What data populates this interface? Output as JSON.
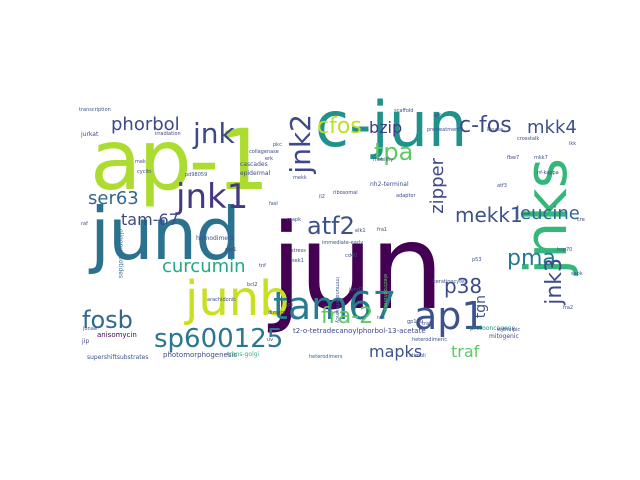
{
  "wordcloud": {
    "words": {
      "jun": "jun",
      "c_jun": "c-jun",
      "ap_1a": "ap-1",
      "jund": "jund",
      "jnks": "jnks",
      "junb": "junb",
      "ap1": "ap1",
      "tam67": "tam67",
      "jnk": "jnk",
      "jnk1": "jnk1",
      "jnk2": "jnk2",
      "atf2": "atf2",
      "fosb": "fosb",
      "sp600125": "sp600125",
      "cfos": "cfos",
      "c_fos": "c-fos",
      "mkk4": "mkk4",
      "bzip": "bzip",
      "phorbol": "phorbol",
      "ser63": "ser63",
      "tam_67": "tam-67",
      "curcumin": "curcumin",
      "tpa": "tpa",
      "mekk1": "mekk1",
      "zipper": "zipper",
      "leucine": "leucine",
      "pma": "pma",
      "fra_2": "fra-2",
      "mapks": "mapks",
      "p38": "p38",
      "traf": "traf",
      "tgn": "tgn",
      "jnk3": "jnk3",
      "jnk1_small": "jnk1",
      "t2_tetradecanoylphorbol": "t2-o-tetradecanoylphorbol-13-acetate",
      "heterodimers": "heterodimers",
      "anisomycin": "anisomycin",
      "photomorphogenesis": "photomorphogenesis",
      "trans_golgi": "trans-golgi",
      "supershiftsubstrates": "supershiftsubstrates",
      "proteasome": "protooncogene",
      "mitogenic": "mitogenic",
      "keratinocytes": "keratinocytes",
      "oligonucleotides": "oligonucleotides",
      "homodimers": "homodimers",
      "immunodeficiency": "immunodeficiency",
      "electrophoretic": "electrophoretic",
      "heterodimeric": "heterodimeric",
      "enthalpic": "enthalpic",
      "gp120": "gp120",
      "traf2": "traf2",
      "cascades": "cascades",
      "epidermal": "epidermal",
      "nh2_terminal": "nh2-terminal",
      "adaptor": "adaptor",
      "pretreatment": "pretreatment",
      "stimuli": "stimuli",
      "immediate_early": "immediate-early",
      "jurkat": "jurkat",
      "junaa": "junaa",
      "jip": "jip",
      "sapk": "sapk",
      "fra2": "fra2",
      "pd98059": "pd98059",
      "fbw7": "fbw7",
      "mekk": "mekk",
      "dimers": "dimers",
      "lps": "lps",
      "atf": "atf",
      "ras": "ras",
      "irradiation": "irradiation",
      "mek": "mek",
      "raf": "raf",
      "mkk7": "mkk7",
      "nf_kappa": "nf-kappa",
      "ikk": "ikk",
      "collagenase": "collagenase",
      "transcription": "transcription",
      "ribosomal": "ribosomal",
      "mobility": "mobility",
      "uv": "uv",
      "arachidonic": "arachidonic",
      "scaffold": "scaffold",
      "kinase": "kinase",
      "crosstalk": "crosstalk",
      "fra1": "fra1",
      "elk1": "elk1",
      "cd40": "cd40",
      "stress": "stress",
      "atf3": "atf3",
      "cre": "cre",
      "sek1": "sek1",
      "egr1": "egr1",
      "junD2": "jund2",
      "il2": "il2",
      "fasl": "fasl",
      "cyclin": "cyclin",
      "p53": "p53",
      "bcl2": "bcl2",
      "hsp70": "hsp70",
      "tnf": "tnf",
      "mapk": "mapk",
      "erk": "erk",
      "pkc": "pkc"
    }
  }
}
